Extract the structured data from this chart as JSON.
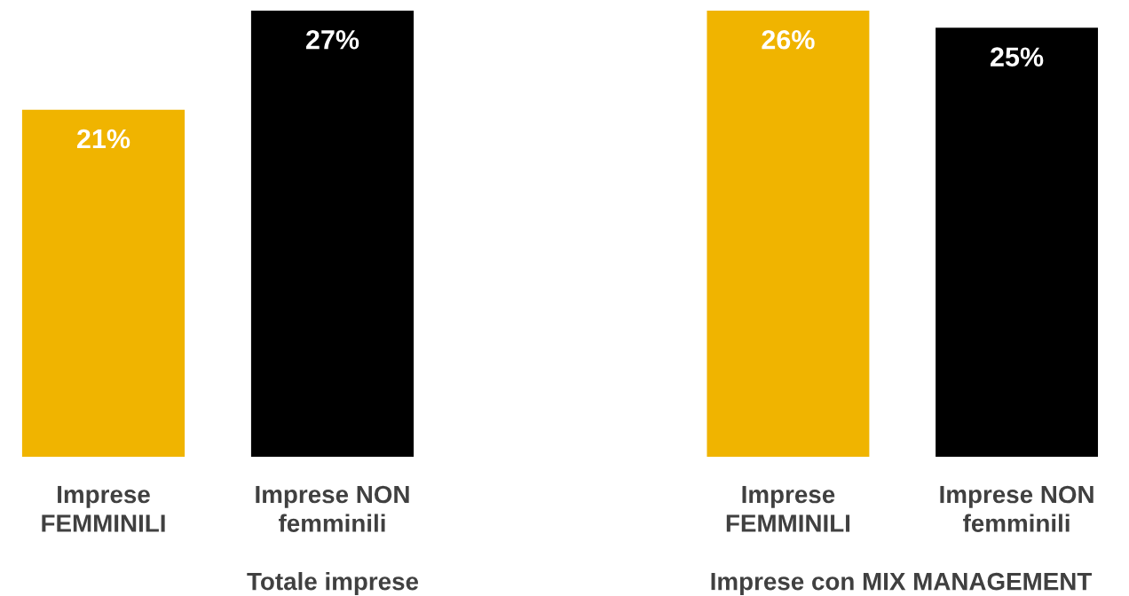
{
  "chart_data": [
    {
      "type": "bar",
      "categories": [
        "Imprese\nFEMMINILI",
        "Imprese NON\nfemminili"
      ],
      "values": [
        21,
        27
      ],
      "colors": [
        "#f0b400",
        "#000000"
      ],
      "value_labels": [
        "21%",
        "27%"
      ],
      "xlabel": "Totale imprese",
      "tick_labels": "x"
    },
    {
      "type": "bar",
      "categories": [
        "Imprese\nFEMMINILI",
        "Imprese NON\nfemminili"
      ],
      "values": [
        26,
        25
      ],
      "colors": [
        "#f0b400",
        "#000000"
      ],
      "value_labels": [
        "26%",
        "25%"
      ],
      "xlabel": "Imprese con MIX MANAGEMENT",
      "tick_labels": "x"
    }
  ]
}
